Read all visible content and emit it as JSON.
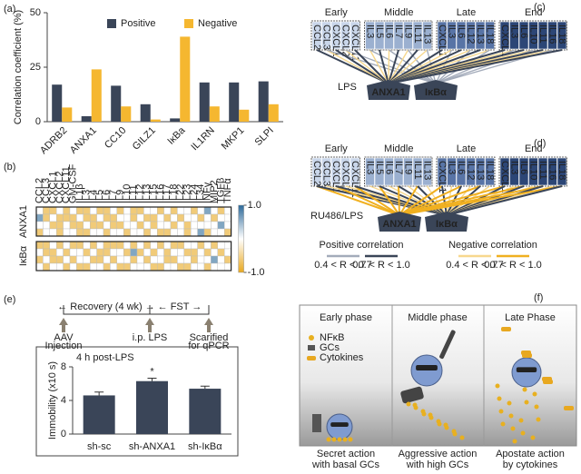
{
  "panel_labels": [
    "(a)",
    "(b)",
    "(c)",
    "(d)",
    "(e)",
    "(f)"
  ],
  "chart_data": [
    {
      "type": "bar",
      "ylabel": "Correlation coefficient (%)",
      "categories": [
        "ADRB2",
        "ANXA1",
        "CC10",
        "GILZ1",
        "IκBa",
        "IL1RN",
        "MKP1",
        "SLPI"
      ],
      "series": [
        {
          "name": "Positive",
          "color": "#3a4558",
          "values": [
            17,
            2.5,
            16.5,
            8,
            1.5,
            18,
            18,
            18.5
          ]
        },
        {
          "name": "Negative",
          "color": "#f5b730",
          "values": [
            6.5,
            24,
            7,
            1,
            39,
            7,
            5.5,
            8
          ]
        }
      ],
      "ylim": [
        0,
        50
      ],
      "yticks": [
        0,
        25,
        50
      ]
    },
    {
      "type": "heatmap",
      "x": [
        "CCL2",
        "CCL3",
        "CXCL1",
        "CXCL2",
        "CXCL11",
        "GM-CSF",
        "IL1β",
        "IL3",
        "IL4",
        "IL5",
        "IL6",
        "IL7",
        "IL9",
        "IL10",
        "IL11",
        "IL12",
        "IL13",
        "IL15",
        "IL16",
        "IL17",
        "IL18",
        "IL22",
        "IL23",
        "IL24",
        "IL34",
        "INFγ",
        "MIP2",
        "TGFβ",
        "TNFα"
      ],
      "groups": [
        {
          "name": "ANXA1",
          "values": [
            [
              0,
              -0.6,
              -0.6,
              0,
              -0.6,
              0,
              -0.6,
              -0.6,
              0,
              -0.6,
              -0.6,
              0,
              -0.6,
              0,
              -0.6,
              -0.6,
              0,
              0,
              -0.6,
              0,
              -0.6,
              0,
              0,
              -0.6,
              0,
              0.6,
              0,
              -0.6,
              0
            ],
            [
              0.6,
              -0.6,
              0,
              -0.6,
              -0.6,
              -0.6,
              0,
              -0.6,
              -0.6,
              0,
              -0.6,
              -0.6,
              0,
              0,
              -0.6,
              0,
              -0.6,
              -0.6,
              0,
              -0.6,
              0,
              -0.6,
              0,
              0,
              -0.6,
              0,
              -0.6,
              0,
              0
            ],
            [
              0,
              0,
              -0.6,
              -0.6,
              0,
              -0.6,
              -0.6,
              0,
              -0.6,
              -0.6,
              0,
              -0.6,
              -0.6,
              0,
              0,
              -0.6,
              0,
              -0.6,
              0,
              0,
              -0.6,
              0,
              -0.6,
              0,
              0,
              0,
              0,
              0.6,
              0
            ],
            [
              -0.6,
              0,
              0,
              -0.6,
              0,
              0,
              -0.6,
              -0.6,
              0,
              0,
              -0.6,
              0,
              0,
              -0.6,
              0,
              0,
              -0.6,
              0,
              -0.6,
              -0.6,
              0,
              0,
              -0.6,
              0,
              0.6,
              -0.6,
              0,
              0,
              -0.6
            ]
          ]
        },
        {
          "name": "IκBα",
          "values": [
            [
              -0.6,
              -0.6,
              0,
              -0.6,
              0,
              -0.6,
              -0.6,
              0,
              -0.6,
              0,
              -0.6,
              -0.6,
              -0.6,
              0,
              -0.6,
              0,
              -0.6,
              0,
              -0.6,
              0,
              -0.6,
              -0.6,
              0,
              0,
              -0.6,
              0,
              -0.6,
              0,
              0
            ],
            [
              0,
              -0.6,
              -0.6,
              0,
              -0.6,
              0,
              0,
              -0.6,
              0,
              -0.6,
              -0.6,
              0,
              0,
              -0.6,
              0.6,
              -0.6,
              0,
              -0.6,
              0,
              -0.6,
              0,
              0,
              -0.6,
              -0.6,
              0,
              -0.6,
              0,
              -0.6,
              0
            ],
            [
              -0.6,
              0,
              -0.6,
              -0.6,
              0,
              -0.6,
              0,
              0,
              -0.6,
              -0.6,
              0,
              -0.6,
              0,
              0,
              -0.6,
              0,
              -0.6,
              0,
              0,
              -0.6,
              -0.6,
              0,
              0,
              -0.6,
              0,
              0,
              0.6,
              0,
              -0.6
            ],
            [
              0,
              -0.6,
              0,
              0,
              -0.6,
              0,
              -0.6,
              -0.6,
              0,
              0,
              -0.6,
              0,
              -0.6,
              -0.6,
              0,
              0,
              0,
              -0.6,
              -0.6,
              0,
              0,
              -0.6,
              -0.6,
              0,
              0,
              -0.6,
              0,
              0,
              0
            ]
          ]
        }
      ],
      "zlim": [
        -1,
        1
      ],
      "zticks": [
        {
          "value": 1,
          "label": "1.0"
        },
        {
          "value": -1,
          "label": "-1.0"
        }
      ],
      "colors": [
        "#e8a820",
        "#ffffff",
        "#2d6a9a"
      ]
    },
    {
      "type": "bar",
      "subtitle": "4 h post-LPS",
      "ylabel": "Immobility (x10 s)",
      "annotation": "*",
      "categories": [
        "sh-sc",
        "sh-ANXA1",
        "sh-IκBα"
      ],
      "values": [
        4.6,
        6.3,
        5.4
      ],
      "errors": [
        0.4,
        0.35,
        0.3
      ],
      "color": "#3a4558",
      "ylim": [
        0,
        8
      ],
      "yticks": [
        0,
        4,
        8
      ]
    }
  ],
  "timeline": {
    "spans": [
      "← Recovery (4 wk) →",
      "← FST →"
    ],
    "events": [
      [
        "AAV",
        "Injection"
      ],
      [
        "i.p. LPS"
      ],
      [
        "Scarified",
        "for qPCR"
      ]
    ]
  },
  "networks": [
    {
      "label": "LPS",
      "hubs": [
        "ANXA1",
        "IκBα"
      ],
      "groups": [
        {
          "name": "Early",
          "color": "#c9d6ea",
          "genes": [
            "CCL2",
            "CCL3",
            "CXCL1",
            "CXCL2",
            "CXCL11"
          ]
        },
        {
          "name": "Middle",
          "color": "#9bb0d0",
          "genes": [
            "IL3",
            "IL5",
            "IL6",
            "IL7",
            "IL9",
            "IL11",
            "IL13"
          ]
        },
        {
          "name": "Late",
          "color": "#5874a6",
          "genes": [
            "CXCL1",
            "IL3",
            "IL6",
            "IL12",
            "IL13",
            "IL18"
          ]
        },
        {
          "name": "End",
          "color": "#2c4676",
          "genes": [
            "CXCL1",
            "IL3",
            "IL6",
            "IL10",
            "IL11",
            "IL16",
            "IL18"
          ]
        }
      ]
    },
    {
      "label": "RU486/LPS",
      "hubs": [
        "ANXA1",
        "IκBα"
      ],
      "groups": [
        {
          "name": "Early",
          "color": "#c9d6ea",
          "genes": [
            "CCL2",
            "CCL3",
            "CXCL1",
            "CXCL2",
            "CXCL11"
          ]
        },
        {
          "name": "Middle",
          "color": "#9bb0d0",
          "genes": [
            "IL3",
            "IL5",
            "IL6",
            "IL7",
            "IL9",
            "IL11",
            "IL13"
          ]
        },
        {
          "name": "Late",
          "color": "#5874a6",
          "genes": [
            "CXCL1",
            "IL3",
            "IL6",
            "IL12",
            "IL13",
            "IL18"
          ]
        },
        {
          "name": "End",
          "color": "#2c4676",
          "genes": [
            "CXCL1",
            "IL3",
            "IL6",
            "IL10",
            "IL11",
            "IL16",
            "IL18"
          ]
        }
      ]
    }
  ],
  "network_legend": [
    {
      "name": "Positive correlation",
      "ranges": [
        {
          "label": "0.4 < R < 0.7",
          "color": "#a3abba"
        },
        {
          "label": "0.7 < R < 1.0",
          "color": "#3a4558"
        }
      ]
    },
    {
      "name": "Negative correlation",
      "ranges": [
        {
          "label": "0.4 < R < 0.7",
          "color": "#f7d88e"
        },
        {
          "label": "0.7 < R < 1.0",
          "color": "#f0b020"
        }
      ]
    }
  ],
  "cartoon": {
    "phases": [
      "Early phase",
      "Middle phase",
      "Late Phase"
    ],
    "legend": [
      "NFκB",
      "GCs",
      "Cytokines"
    ],
    "captions": [
      [
        "Secret action",
        "with basal GCs"
      ],
      [
        "Aggressive action",
        "with high GCs"
      ],
      [
        "Apostate action",
        "by cytokines"
      ]
    ]
  }
}
